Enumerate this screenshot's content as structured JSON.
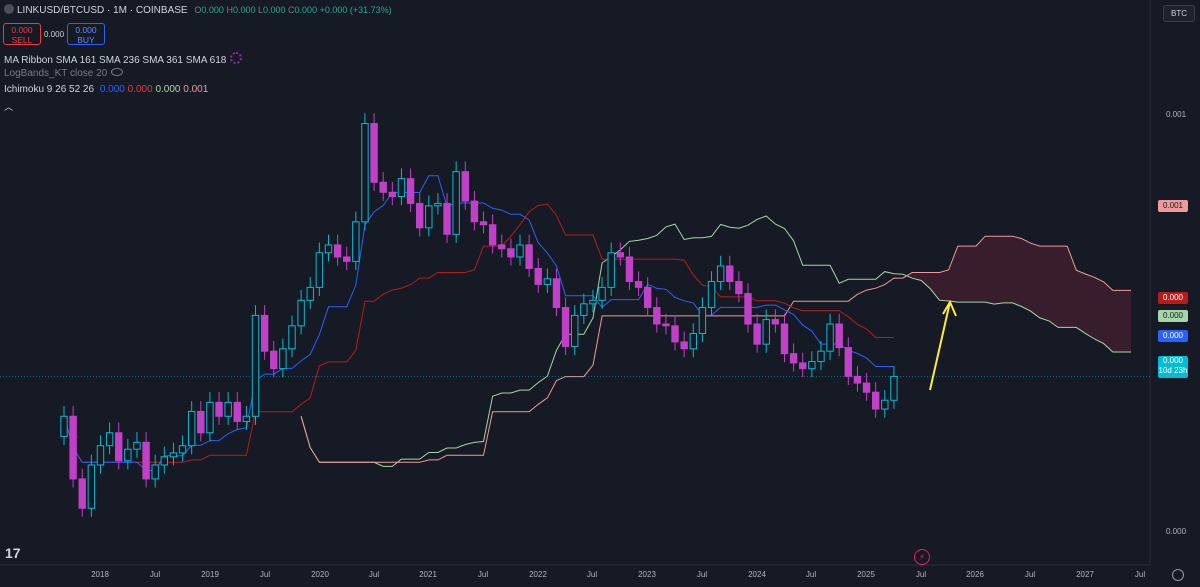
{
  "header": {
    "symbol": "LINKUSD/BTCUSD · 1M · COINBASE",
    "ohlc": [
      {
        "k": "O",
        "v": "0.000"
      },
      {
        "k": "H",
        "v": "0.000"
      },
      {
        "k": "L",
        "v": "0.000"
      },
      {
        "k": "C",
        "v": "0.000"
      }
    ],
    "change": "+0.000 (+31.73%)",
    "sell_price": "0.000",
    "sell_label": "SELL",
    "spread": "0.000",
    "buy_price": "0.000",
    "buy_label": "BUY"
  },
  "indicators": {
    "ma_ribbon": "MA Ribbon SMA 161 SMA 236 SMA 361 SMA 618",
    "logbands": "LogBands_KT close 20",
    "ichimoku_name": "Ichimoku 9 26 52 26",
    "ichimoku_values": [
      {
        "v": "0.000",
        "color": "#2962ff"
      },
      {
        "v": "0.000",
        "color": "#b71c1c"
      },
      {
        "v": "0.000",
        "color": "#a5d6a7"
      },
      {
        "v": "0.001",
        "color": "#ef9a9a"
      }
    ]
  },
  "currency_badge": "BTC",
  "price_axis": {
    "ticks": [
      "0.001",
      "0.000"
    ],
    "badges": [
      {
        "text": "0.001",
        "bg": "#ef9a9a",
        "fg": "#161a25"
      },
      {
        "text": "0.000",
        "bg": "#b71c1c",
        "fg": "#ffffff"
      },
      {
        "text": "0.000",
        "bg": "#a5d6a7",
        "fg": "#161a25"
      },
      {
        "text": "0.000",
        "bg": "#2962ff",
        "fg": "#ffffff"
      },
      {
        "text": "0.000",
        "bg": "#00bcd4",
        "fg": "#ffffff"
      }
    ],
    "countdown": "10d 23h"
  },
  "time_axis": [
    "2018",
    "Jul",
    "2019",
    "Jul",
    "2020",
    "Jul",
    "2021",
    "Jul",
    "2022",
    "Jul",
    "2023",
    "Jul",
    "2024",
    "Jul",
    "2025",
    "Jul",
    "2026",
    "Jul",
    "2027",
    "Jul"
  ],
  "tv_logo": "17",
  "chart_data": {
    "type": "candlestick",
    "interval": "1M",
    "y_scale": "log",
    "start_month": "2017-10",
    "bear_color": "#c040c8",
    "bull_color": "#00bcd4",
    "close_btc": [
      3.6e-05,
      1.8e-05,
      1.3e-05,
      2.1e-05,
      2.6e-05,
      3e-05,
      2.2e-05,
      2.5e-05,
      2.7e-05,
      1.8e-05,
      2.1e-05,
      2.3e-05,
      2.4e-05,
      2.6e-05,
      3.8e-05,
      3e-05,
      4.2e-05,
      3.6e-05,
      4.2e-05,
      3.4e-05,
      3.6e-05,
      0.00011,
      7.4e-05,
      6.1e-05,
      7.6e-05,
      9.8e-05,
      0.00013,
      0.00015,
      0.00022,
      0.00024,
      0.00021,
      0.0002,
      0.00031,
      0.00092,
      0.00048,
      0.00043,
      0.00041,
      0.0005,
      0.00038,
      0.00029,
      0.00037,
      0.00038,
      0.00027,
      0.00054,
      0.00039,
      0.00031,
      0.0003,
      0.00024,
      0.00023,
      0.00021,
      0.00024,
      0.000185,
      0.000155,
      0.000165,
      0.00012,
      7.8e-05,
      0.00011,
      0.000125,
      0.00013,
      0.00015,
      0.00022,
      0.00021,
      0.00016,
      0.00015,
      0.00012,
      0.0001,
      9.8e-05,
      8.2e-05,
      7.6e-05,
      9e-05,
      0.00012,
      0.00016,
      0.00019,
      0.00016,
      0.00014,
      0.0001,
      8e-05,
      0.000105,
      0.0001,
      7.2e-05,
      6.5e-05,
      6.1e-05,
      6.6e-05,
      7.4e-05,
      0.0001,
      7.7e-05,
      5.6e-05,
      5.2e-05,
      4.7e-05,
      3.9e-05,
      4.3e-05,
      5.6e-05
    ]
  }
}
